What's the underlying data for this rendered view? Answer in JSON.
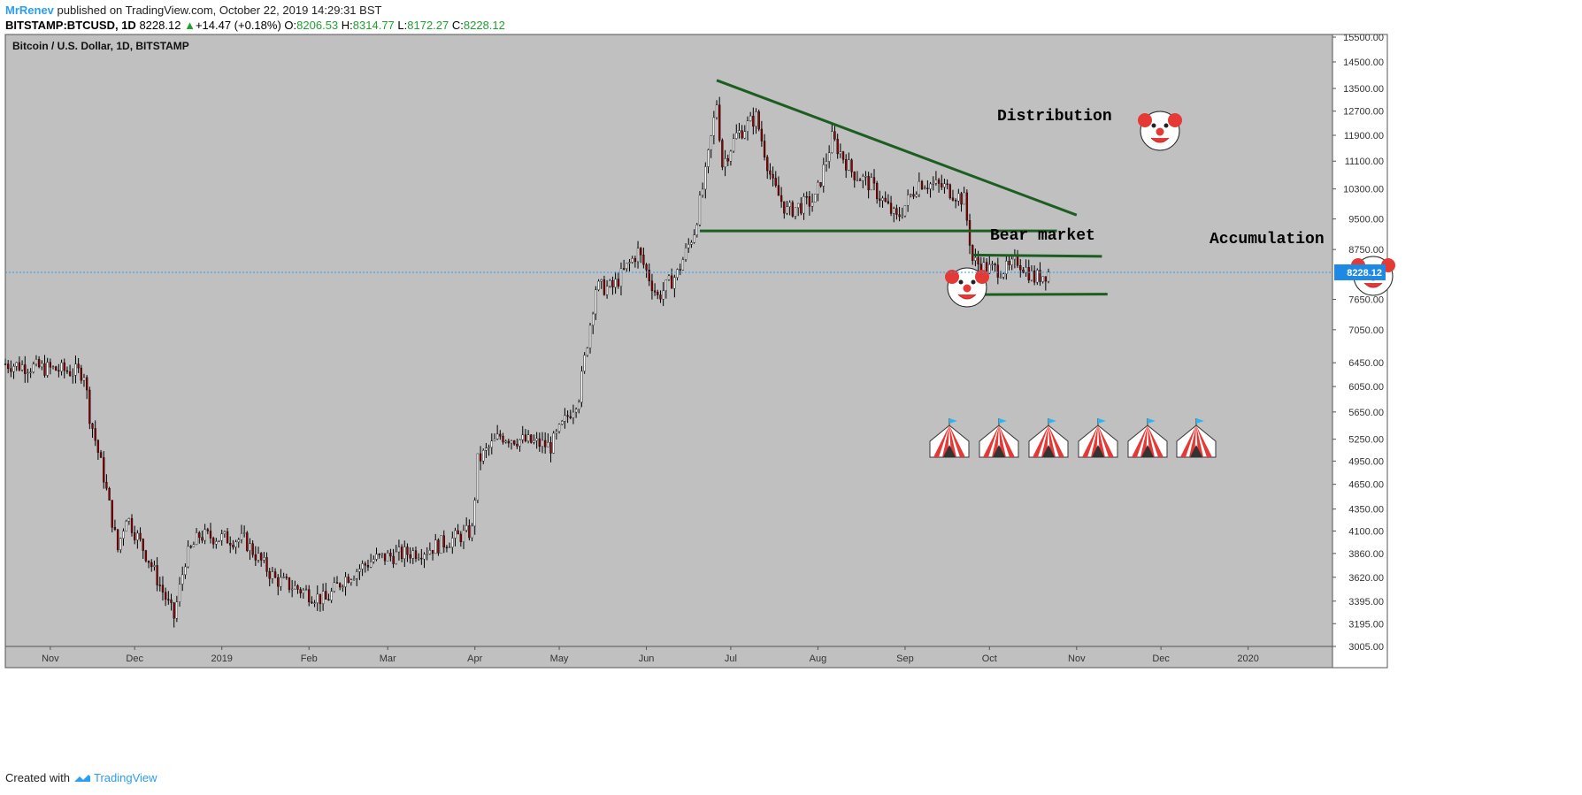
{
  "header": {
    "author": "MrRenev",
    "published_text": "published on TradingView.com, October 22, 2019 14:29:31 BST",
    "symbol": "BITSTAMP:BTCUSD, 1D",
    "last": "8228.12",
    "change": "+14.47 (+0.18%)",
    "o_label": "O:",
    "o_value": "8206.53",
    "h_label": "H:",
    "h_value": "8314.77",
    "l_label": "L:",
    "l_value": "8172.27",
    "c_label": "C:",
    "c_value": "8228.12"
  },
  "footer": {
    "created_with": "Created with",
    "brand": "TradingView"
  },
  "colors": {
    "plot_bg": "#c0c0c0",
    "up": "#ffffff",
    "down": "#8b0000",
    "wick": "#000000",
    "trendline": "#1b5e20",
    "price_tag": "#1e88e5",
    "price_line": "#2a9df4"
  },
  "chart_data": {
    "type": "candlestick",
    "title": "Bitcoin / U.S. Dollar, 1D, BITSTAMP",
    "y_scale": "log",
    "ylim": [
      3005,
      15500
    ],
    "y_ticks": [
      "15500.00",
      "14500.00",
      "13500.00",
      "12700.00",
      "11900.00",
      "11100.00",
      "10300.00",
      "9500.00",
      "8750.00",
      "7650.00",
      "7050.00",
      "6450.00",
      "6050.00",
      "5650.00",
      "5250.00",
      "4950.00",
      "4650.00",
      "4350.00",
      "4100.00",
      "3860.00",
      "3620.00",
      "3395.00",
      "3195.00",
      "3005.00"
    ],
    "last_price": "8228.12",
    "x_range": [
      "2018-10-16",
      "2020-01-31"
    ],
    "x_ticks": [
      {
        "label": "Nov",
        "date": "2018-11-01"
      },
      {
        "label": "Dec",
        "date": "2018-12-01"
      },
      {
        "label": "2019",
        "date": "2019-01-01"
      },
      {
        "label": "Feb",
        "date": "2019-02-01"
      },
      {
        "label": "Mar",
        "date": "2019-03-01"
      },
      {
        "label": "Apr",
        "date": "2019-04-01"
      },
      {
        "label": "May",
        "date": "2019-05-01"
      },
      {
        "label": "Jun",
        "date": "2019-06-01"
      },
      {
        "label": "Jul",
        "date": "2019-07-01"
      },
      {
        "label": "Aug",
        "date": "2019-08-01"
      },
      {
        "label": "Sep",
        "date": "2019-09-01"
      },
      {
        "label": "Oct",
        "date": "2019-10-01"
      },
      {
        "label": "Nov",
        "date": "2019-11-01"
      },
      {
        "label": "Dec",
        "date": "2019-12-01"
      },
      {
        "label": "2020",
        "date": "2020-01-01"
      }
    ],
    "price_path": [
      [
        "2018-10-16",
        6430
      ],
      [
        "2018-11-13",
        6280
      ],
      [
        "2018-11-15",
        5600
      ],
      [
        "2018-11-20",
        4750
      ],
      [
        "2018-11-25",
        3900
      ],
      [
        "2018-11-28",
        4280
      ],
      [
        "2018-12-06",
        3800
      ],
      [
        "2018-12-15",
        3250
      ],
      [
        "2018-12-19",
        3800
      ],
      [
        "2018-12-24",
        4050
      ],
      [
        "2019-01-09",
        4000
      ],
      [
        "2019-01-20",
        3600
      ],
      [
        "2019-02-07",
        3400
      ],
      [
        "2019-02-13",
        3600
      ],
      [
        "2019-02-24",
        3800
      ],
      [
        "2019-03-15",
        3900
      ],
      [
        "2019-03-31",
        4100
      ],
      [
        "2019-04-02",
        4950
      ],
      [
        "2019-04-10",
        5300
      ],
      [
        "2019-04-28",
        5150
      ],
      [
        "2019-05-08",
        5900
      ],
      [
        "2019-05-14",
        7900
      ],
      [
        "2019-05-20",
        7900
      ],
      [
        "2019-05-29",
        8700
      ],
      [
        "2019-06-05",
        7700
      ],
      [
        "2019-06-12",
        8200
      ],
      [
        "2019-06-18",
        9200
      ],
      [
        "2019-06-22",
        10700
      ],
      [
        "2019-06-26",
        13000
      ],
      [
        "2019-06-28",
        11000
      ],
      [
        "2019-07-03",
        11900
      ],
      [
        "2019-07-10",
        12500
      ],
      [
        "2019-07-16",
        10400
      ],
      [
        "2019-07-21",
        9700
      ],
      [
        "2019-07-31",
        10000
      ],
      [
        "2019-08-06",
        11800
      ],
      [
        "2019-08-13",
        10800
      ],
      [
        "2019-08-20",
        10400
      ],
      [
        "2019-08-29",
        9500
      ],
      [
        "2019-09-06",
        10500
      ],
      [
        "2019-09-15",
        10350
      ],
      [
        "2019-09-22",
        10000
      ],
      [
        "2019-09-25",
        8500
      ],
      [
        "2019-09-30",
        8300
      ],
      [
        "2019-10-08",
        8300
      ],
      [
        "2019-10-11",
        8500
      ],
      [
        "2019-10-17",
        8100
      ],
      [
        "2019-10-22",
        8228.12
      ]
    ],
    "annotations": [
      {
        "type": "trendline",
        "from": [
          "2019-06-26",
          13800
        ],
        "to": [
          "2019-11-01",
          9600
        ]
      },
      {
        "type": "trendline",
        "from": [
          "2019-06-20",
          9200
        ],
        "to": [
          "2019-10-25",
          9200
        ]
      },
      {
        "type": "trendline",
        "from": [
          "2019-09-25",
          8620
        ],
        "to": [
          "2019-11-10",
          8590
        ]
      },
      {
        "type": "trendline",
        "from": [
          "2019-09-25",
          7750
        ],
        "to": [
          "2019-11-12",
          7760
        ]
      },
      {
        "type": "text",
        "text": "Distribution"
      },
      {
        "type": "text",
        "text": "Bear market"
      },
      {
        "type": "text",
        "text": "Accumulation"
      }
    ],
    "icons": [
      "clown-face-icon",
      "clown-face-icon",
      "clown-face-icon",
      "circus-tent-icon",
      "circus-tent-icon",
      "circus-tent-icon",
      "circus-tent-icon",
      "circus-tent-icon",
      "circus-tent-icon"
    ]
  }
}
